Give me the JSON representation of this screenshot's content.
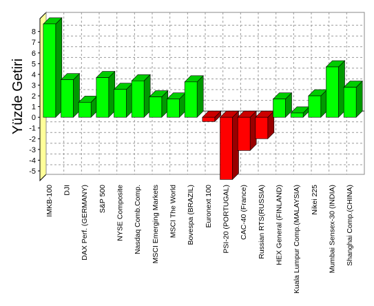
{
  "chart_data": {
    "type": "bar3d",
    "ylabel": "Yüzde Getiri",
    "categories": [
      "IMKB-100",
      "DJI",
      "DAX Perf. (GERMANY)",
      "S&P 500",
      "NYSE Composite",
      "Nasdaq Comb.Comp.",
      "MSCI Emerging Markets",
      "MSCI The World",
      "Bovespa (BRAZIL)",
      "Euronext 100",
      "PSI-20 (PORTUGAL)",
      "CAC-40 (France)",
      "Russian RTS(RUSSIA)",
      "HEX General (FINLAND)",
      "Kuala Lumpur Comp.(MALAYSIA)",
      "Nikei 225",
      "Mumbai Sensex-30 (INDIA)",
      "Shanghai Comp.(CHINA)"
    ],
    "values": [
      8.7,
      3.5,
      1.4,
      3.7,
      2.6,
      3.4,
      1.9,
      1.7,
      3.3,
      -0.4,
      -5.8,
      -3.1,
      -2.0,
      1.7,
      0.4,
      2.0,
      4.7,
      2.8
    ],
    "positive_color": "#00ff00",
    "negative_color": "#ff0000",
    "ylim": [
      -5.9,
      9.2
    ],
    "yticks": [
      -5,
      -4,
      -3,
      -2,
      -1,
      0,
      1,
      2,
      3,
      4,
      5,
      6,
      7,
      8
    ],
    "grid": true
  }
}
